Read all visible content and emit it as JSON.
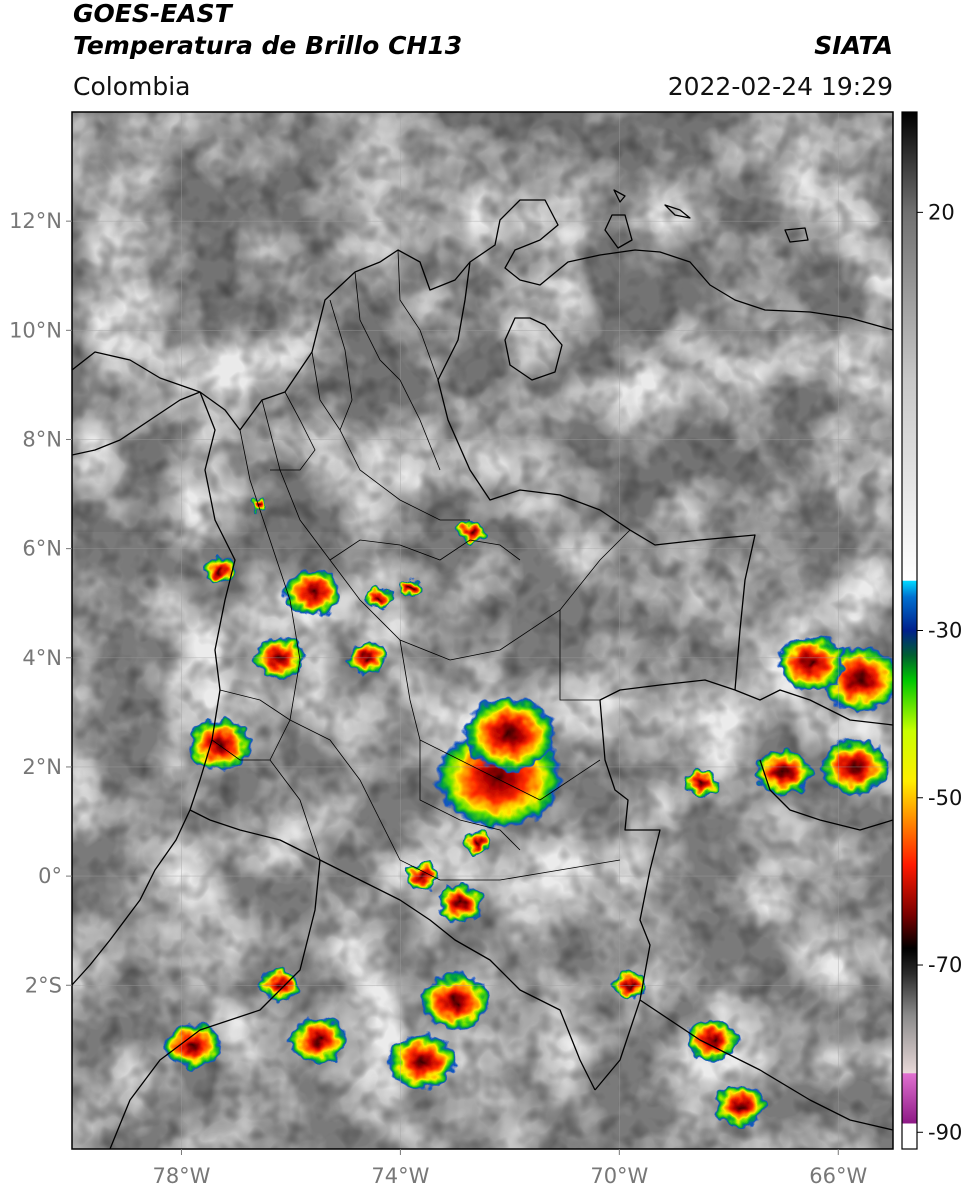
{
  "header": {
    "satellite": "GOES-EAST",
    "product": "Temperatura de Brillo CH13",
    "region": "Colombia",
    "agency": "SIATA",
    "datetime": "2022-02-24 19:29"
  },
  "map": {
    "lon_range": [
      -80,
      -65
    ],
    "lat_range": [
      -5,
      14
    ],
    "lat_ticks": [
      {
        "value": 12,
        "label": "12°N"
      },
      {
        "value": 10,
        "label": "10°N"
      },
      {
        "value": 8,
        "label": "8°N"
      },
      {
        "value": 6,
        "label": "6°N"
      },
      {
        "value": 4,
        "label": "4°N"
      },
      {
        "value": 2,
        "label": "2°N"
      },
      {
        "value": 0,
        "label": "0°"
      },
      {
        "value": -2,
        "label": "2°S"
      }
    ],
    "lon_ticks": [
      {
        "value": -78,
        "label": "78°W"
      },
      {
        "value": -74,
        "label": "74°W"
      },
      {
        "value": -70,
        "label": "70°W"
      },
      {
        "value": -66,
        "label": "66°W"
      }
    ],
    "storm_cells": [
      {
        "lon": -72.2,
        "lat": 1.8,
        "size": 1.1
      },
      {
        "lon": -72.0,
        "lat": 2.6,
        "size": 0.8
      },
      {
        "lon": -65.6,
        "lat": 3.6,
        "size": 0.7
      },
      {
        "lon": -65.7,
        "lat": 2.0,
        "size": 0.6
      },
      {
        "lon": -67.0,
        "lat": 1.9,
        "size": 0.5
      },
      {
        "lon": -68.5,
        "lat": 1.7,
        "size": 0.3
      },
      {
        "lon": -66.5,
        "lat": 3.9,
        "size": 0.6
      },
      {
        "lon": -77.3,
        "lat": 2.4,
        "size": 0.55
      },
      {
        "lon": -76.2,
        "lat": 4.0,
        "size": 0.45
      },
      {
        "lon": -75.6,
        "lat": 5.2,
        "size": 0.5
      },
      {
        "lon": -77.3,
        "lat": 5.6,
        "size": 0.3
      },
      {
        "lon": -74.6,
        "lat": 4.0,
        "size": 0.35
      },
      {
        "lon": -74.4,
        "lat": 5.1,
        "size": 0.25
      },
      {
        "lon": -73.6,
        "lat": 0.0,
        "size": 0.3
      },
      {
        "lon": -72.9,
        "lat": -0.5,
        "size": 0.4
      },
      {
        "lon": -72.6,
        "lat": 0.6,
        "size": 0.25
      },
      {
        "lon": -73.0,
        "lat": -2.3,
        "size": 0.6
      },
      {
        "lon": -73.6,
        "lat": -3.4,
        "size": 0.6
      },
      {
        "lon": -75.5,
        "lat": -3.0,
        "size": 0.5
      },
      {
        "lon": -76.2,
        "lat": -2.0,
        "size": 0.35
      },
      {
        "lon": -77.8,
        "lat": -3.1,
        "size": 0.5
      },
      {
        "lon": -69.8,
        "lat": -2.0,
        "size": 0.3
      },
      {
        "lon": -68.3,
        "lat": -3.0,
        "size": 0.45
      },
      {
        "lon": -67.8,
        "lat": -4.2,
        "size": 0.45
      },
      {
        "lon": -72.7,
        "lat": 6.3,
        "size": 0.25
      },
      {
        "lon": -73.8,
        "lat": 5.3,
        "size": 0.2
      },
      {
        "lon": -76.6,
        "lat": 6.8,
        "size": 0.15
      }
    ]
  },
  "colorbar": {
    "range": [
      -92,
      32
    ],
    "ticks": [
      {
        "value": 20,
        "label": "20"
      },
      {
        "value": -30,
        "label": "-30"
      },
      {
        "value": -50,
        "label": "-50"
      },
      {
        "value": -70,
        "label": "-70"
      },
      {
        "value": -90,
        "label": "-90"
      }
    ],
    "stops": [
      {
        "value": -92,
        "color": "#ffffff"
      },
      {
        "value": -89,
        "color": "#ffffff"
      },
      {
        "value": -88.9,
        "color": "#8e1a86"
      },
      {
        "value": -83,
        "color": "#e070d0"
      },
      {
        "value": -82.9,
        "color": "#e8d8d8"
      },
      {
        "value": -76,
        "color": "#8a8a8a"
      },
      {
        "value": -71,
        "color": "#2a2a2a"
      },
      {
        "value": -68,
        "color": "#000000"
      },
      {
        "value": -64,
        "color": "#7a0000"
      },
      {
        "value": -58,
        "color": "#ff1a00"
      },
      {
        "value": -52,
        "color": "#ff9a00"
      },
      {
        "value": -48,
        "color": "#ffee00"
      },
      {
        "value": -42,
        "color": "#c8ff00"
      },
      {
        "value": -36,
        "color": "#00c800"
      },
      {
        "value": -33,
        "color": "#006030"
      },
      {
        "value": -30,
        "color": "#00208c"
      },
      {
        "value": -26,
        "color": "#0070d0"
      },
      {
        "value": -24.1,
        "color": "#00d8ff"
      },
      {
        "value": -24,
        "color": "#ffffff"
      },
      {
        "value": 0,
        "color": "#c8c8c8"
      },
      {
        "value": 20,
        "color": "#707070"
      },
      {
        "value": 32,
        "color": "#000000"
      }
    ]
  }
}
